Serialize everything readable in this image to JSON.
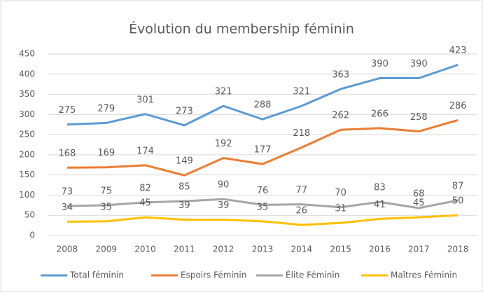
{
  "chart_data": {
    "type": "line",
    "title": "Évolution du membership féminin",
    "categories": [
      "2008",
      "2009",
      "2010",
      "2011",
      "2012",
      "2013",
      "2014",
      "2015",
      "2016",
      "2017",
      "2018"
    ],
    "series": [
      {
        "name": "Total féminin",
        "color": "#5b9bd5",
        "values": [
          275,
          279,
          301,
          273,
          321,
          288,
          321,
          363,
          390,
          390,
          423
        ]
      },
      {
        "name": "Espoirs Féminin",
        "color": "#ed7d31",
        "values": [
          168,
          169,
          174,
          149,
          192,
          177,
          218,
          262,
          266,
          258,
          286
        ]
      },
      {
        "name": "Élite Féminin",
        "color": "#a5a5a5",
        "values": [
          73,
          75,
          82,
          85,
          90,
          76,
          77,
          70,
          83,
          68,
          87
        ]
      },
      {
        "name": "Maîtres Féminin",
        "color": "#ffc000",
        "values": [
          34,
          35,
          45,
          39,
          39,
          35,
          26,
          31,
          41,
          45,
          50
        ]
      }
    ],
    "ylim": [
      0,
      450
    ],
    "yticks": [
      0,
      50,
      100,
      150,
      200,
      250,
      300,
      350,
      400,
      450
    ],
    "grid": true,
    "legend": "bottom"
  }
}
